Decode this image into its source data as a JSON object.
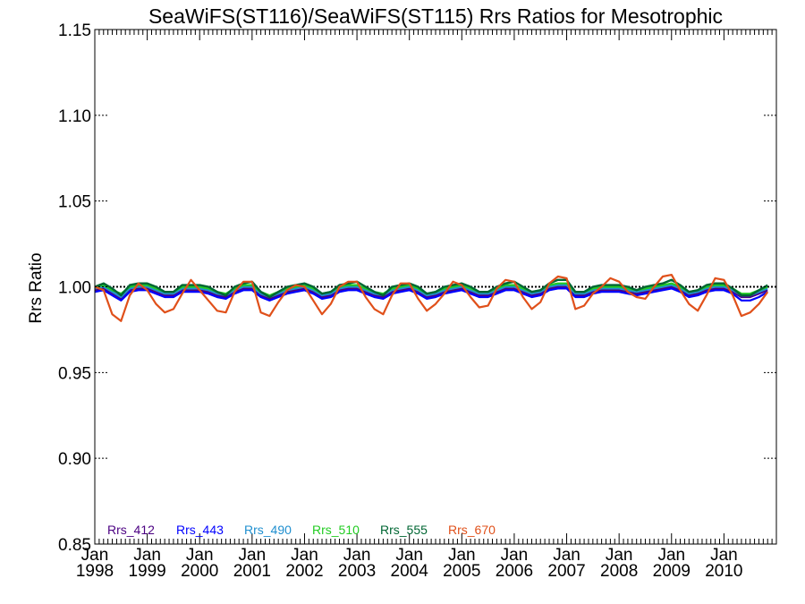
{
  "chart_data": {
    "type": "line",
    "title": "SeaWiFS(ST116)/SeaWiFS(ST115)  Rrs Ratios for Mesotrophic",
    "ylabel": "Rrs Ratio",
    "xlabel": "",
    "ylim": [
      0.85,
      1.15
    ],
    "xlim": [
      "1998-01",
      "2010-12"
    ],
    "y_ticks": [
      "0.85",
      "0.90",
      "0.95",
      "1.00",
      "1.05",
      "1.10",
      "1.15"
    ],
    "x_ticks": [
      {
        "month": "Jan",
        "year": "1998"
      },
      {
        "month": "Jan",
        "year": "1999"
      },
      {
        "month": "Jan",
        "year": "2000"
      },
      {
        "month": "Jan",
        "year": "2001"
      },
      {
        "month": "Jan",
        "year": "2002"
      },
      {
        "month": "Jan",
        "year": "2003"
      },
      {
        "month": "Jan",
        "year": "2004"
      },
      {
        "month": "Jan",
        "year": "2005"
      },
      {
        "month": "Jan",
        "year": "2006"
      },
      {
        "month": "Jan",
        "year": "2007"
      },
      {
        "month": "Jan",
        "year": "2008"
      },
      {
        "month": "Jan",
        "year": "2009"
      },
      {
        "month": "Jan",
        "year": "2010"
      }
    ],
    "reference_line": 1.0,
    "grid": false,
    "legend_position": "bottom-left",
    "x": [
      "1998-01",
      "1998-03",
      "1998-05",
      "1998-07",
      "1998-09",
      "1998-11",
      "1999-01",
      "1999-03",
      "1999-05",
      "1999-07",
      "1999-09",
      "1999-11",
      "2000-01",
      "2000-03",
      "2000-05",
      "2000-07",
      "2000-09",
      "2000-11",
      "2001-01",
      "2001-03",
      "2001-05",
      "2001-07",
      "2001-09",
      "2001-11",
      "2002-01",
      "2002-03",
      "2002-05",
      "2002-07",
      "2002-09",
      "2002-11",
      "2003-01",
      "2003-03",
      "2003-05",
      "2003-07",
      "2003-09",
      "2003-11",
      "2004-01",
      "2004-03",
      "2004-05",
      "2004-07",
      "2004-09",
      "2004-11",
      "2005-01",
      "2005-03",
      "2005-05",
      "2005-07",
      "2005-09",
      "2005-11",
      "2006-01",
      "2006-03",
      "2006-05",
      "2006-07",
      "2006-09",
      "2006-11",
      "2007-01",
      "2007-03",
      "2007-05",
      "2007-07",
      "2007-09",
      "2007-11",
      "2008-01",
      "2008-03",
      "2008-05",
      "2008-07",
      "2008-09",
      "2008-11",
      "2009-01",
      "2009-03",
      "2009-05",
      "2009-07",
      "2009-09",
      "2009-11",
      "2010-01",
      "2010-03",
      "2010-05",
      "2010-07",
      "2010-09",
      "2010-11"
    ],
    "series": [
      {
        "name": "Rrs_412",
        "color": "#4b0082",
        "width": 2.2,
        "values": [
          0.998,
          0.999,
          0.996,
          0.993,
          0.998,
          0.999,
          0.999,
          0.997,
          0.995,
          0.995,
          0.998,
          0.998,
          0.998,
          0.997,
          0.995,
          0.994,
          0.997,
          0.999,
          0.999,
          0.995,
          0.993,
          0.995,
          0.997,
          0.998,
          0.999,
          0.997,
          0.994,
          0.995,
          0.998,
          0.999,
          0.999,
          0.997,
          0.995,
          0.994,
          0.997,
          0.998,
          0.999,
          0.997,
          0.994,
          0.995,
          0.997,
          0.998,
          0.999,
          0.997,
          0.995,
          0.995,
          0.997,
          0.999,
          0.999,
          0.997,
          0.995,
          0.996,
          0.999,
          1.0,
          1.0,
          0.995,
          0.995,
          0.997,
          0.998,
          0.998,
          0.998,
          0.997,
          0.996,
          0.997,
          0.998,
          0.999,
          1.0,
          0.998,
          0.995,
          0.996,
          0.998,
          0.999,
          0.999,
          0.997,
          0.994,
          0.994,
          0.996,
          0.998
        ]
      },
      {
        "name": "Rrs_443",
        "color": "#0000ff",
        "width": 2.2,
        "values": [
          0.997,
          0.998,
          0.995,
          0.992,
          0.997,
          0.998,
          0.998,
          0.996,
          0.994,
          0.994,
          0.997,
          0.997,
          0.997,
          0.996,
          0.994,
          0.993,
          0.996,
          0.998,
          0.998,
          0.994,
          0.992,
          0.994,
          0.996,
          0.997,
          0.998,
          0.996,
          0.993,
          0.994,
          0.997,
          0.998,
          0.998,
          0.996,
          0.994,
          0.993,
          0.996,
          0.997,
          0.998,
          0.996,
          0.993,
          0.994,
          0.996,
          0.997,
          0.998,
          0.996,
          0.994,
          0.994,
          0.996,
          0.998,
          0.998,
          0.996,
          0.994,
          0.995,
          0.998,
          0.999,
          0.999,
          0.994,
          0.994,
          0.996,
          0.997,
          0.997,
          0.997,
          0.996,
          0.995,
          0.996,
          0.997,
          0.998,
          0.999,
          0.997,
          0.994,
          0.995,
          0.997,
          0.998,
          0.998,
          0.996,
          0.992,
          0.992,
          0.994,
          0.997
        ]
      },
      {
        "name": "Rrs_490",
        "color": "#1f8fcf",
        "width": 2.2,
        "values": [
          0.999,
          1.0,
          0.997,
          0.994,
          0.999,
          1.0,
          1.0,
          0.998,
          0.996,
          0.996,
          0.999,
          0.999,
          0.999,
          0.998,
          0.996,
          0.995,
          0.998,
          1.0,
          1.0,
          0.996,
          0.994,
          0.996,
          0.998,
          0.999,
          1.0,
          0.998,
          0.995,
          0.996,
          0.999,
          1.0,
          1.0,
          0.998,
          0.996,
          0.995,
          0.998,
          0.999,
          1.0,
          0.998,
          0.995,
          0.996,
          0.998,
          0.999,
          1.0,
          0.998,
          0.996,
          0.996,
          0.998,
          1.0,
          1.0,
          0.998,
          0.996,
          0.997,
          1.0,
          1.001,
          1.001,
          0.996,
          0.996,
          0.998,
          0.999,
          0.999,
          0.999,
          0.998,
          0.997,
          0.998,
          0.999,
          1.0,
          1.001,
          0.999,
          0.996,
          0.997,
          0.999,
          1.0,
          1.0,
          0.998,
          0.995,
          0.995,
          0.997,
          0.999
        ]
      },
      {
        "name": "Rrs_510",
        "color": "#22cc22",
        "width": 2.2,
        "values": [
          1.0,
          1.001,
          0.998,
          0.996,
          1.0,
          1.001,
          1.001,
          0.999,
          0.997,
          0.997,
          1.0,
          1.0,
          1.0,
          0.999,
          0.997,
          0.996,
          0.999,
          1.001,
          1.001,
          0.997,
          0.995,
          0.997,
          0.999,
          1.0,
          1.001,
          0.999,
          0.996,
          0.997,
          1.0,
          1.001,
          1.001,
          0.999,
          0.997,
          0.996,
          0.999,
          1.0,
          1.001,
          0.999,
          0.996,
          0.997,
          0.999,
          1.0,
          1.001,
          0.999,
          0.997,
          0.997,
          0.999,
          1.001,
          1.001,
          0.999,
          0.997,
          0.998,
          1.001,
          1.002,
          1.002,
          0.997,
          0.997,
          0.999,
          1.0,
          1.0,
          1.0,
          0.999,
          0.998,
          0.999,
          1.0,
          1.001,
          1.002,
          1.0,
          0.997,
          0.998,
          1.0,
          1.001,
          1.001,
          0.999,
          0.996,
          0.996,
          0.998,
          1.0
        ]
      },
      {
        "name": "Rrs_555",
        "color": "#006633",
        "width": 2.4,
        "values": [
          1.0,
          1.002,
          0.999,
          0.995,
          1.001,
          1.002,
          1.002,
          1.0,
          0.997,
          0.997,
          1.001,
          1.001,
          1.001,
          1.0,
          0.997,
          0.995,
          1.0,
          1.002,
          1.003,
          0.997,
          0.994,
          0.997,
          1.0,
          1.001,
          1.002,
          1.0,
          0.996,
          0.997,
          1.001,
          1.002,
          1.003,
          1.0,
          0.997,
          0.995,
          1.0,
          1.001,
          1.002,
          1.0,
          0.996,
          0.997,
          1.0,
          1.001,
          1.002,
          1.0,
          0.997,
          0.997,
          1.0,
          1.002,
          1.003,
          1.0,
          0.997,
          0.998,
          1.002,
          1.004,
          1.004,
          0.997,
          0.997,
          1.0,
          1.001,
          1.001,
          1.001,
          1.0,
          0.998,
          1.0,
          1.001,
          1.002,
          1.004,
          1.001,
          0.997,
          0.998,
          1.001,
          1.002,
          1.002,
          0.999,
          0.995,
          0.995,
          0.998,
          1.001
        ]
      },
      {
        "name": "Rrs_670",
        "color": "#e0501a",
        "width": 2.2,
        "values": [
          1.0,
          0.998,
          0.984,
          0.98,
          0.995,
          1.002,
          0.998,
          0.99,
          0.985,
          0.987,
          0.996,
          1.004,
          0.998,
          0.992,
          0.986,
          0.985,
          0.997,
          1.003,
          1.003,
          0.985,
          0.983,
          0.991,
          0.998,
          1.001,
          1.0,
          0.992,
          0.984,
          0.99,
          1.0,
          1.003,
          1.003,
          0.994,
          0.987,
          0.984,
          0.995,
          1.002,
          1.002,
          0.993,
          0.986,
          0.99,
          0.996,
          1.003,
          1.001,
          0.994,
          0.988,
          0.989,
          0.999,
          1.004,
          1.003,
          0.994,
          0.987,
          0.991,
          1.002,
          1.006,
          1.005,
          0.987,
          0.989,
          0.996,
          1.0,
          1.005,
          1.003,
          0.997,
          0.994,
          0.993,
          1.0,
          1.006,
          1.007,
          0.998,
          0.99,
          0.986,
          0.995,
          1.005,
          1.004,
          0.995,
          0.983,
          0.985,
          0.99,
          0.997
        ]
      }
    ]
  }
}
